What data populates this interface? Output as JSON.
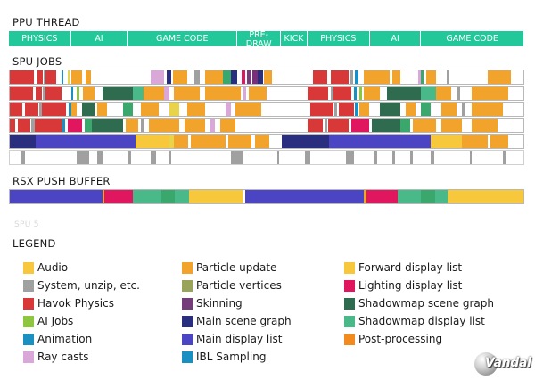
{
  "ppu": {
    "title": "PPU THREAD",
    "segments": [
      {
        "label": "PHYSICS",
        "fraction": 0.1204
      },
      {
        "label": "AI",
        "fraction": 0.1104
      },
      {
        "label": "GAME CODE",
        "fraction": 0.2124
      },
      {
        "label": "PRE-\nDRAW",
        "fraction": 0.085
      },
      {
        "label": "KICK",
        "fraction": 0.051
      },
      {
        "label": "PHYSICS",
        "fraction": 0.1214
      },
      {
        "label": "AI",
        "fraction": 0.0994
      },
      {
        "label": "GAME CODE",
        "fraction": 0.2
      }
    ]
  },
  "spu": {
    "title": "SPU JOBS",
    "row_label": "SPU 5",
    "rows": [
      [
        [
          "#d93838",
          0,
          0.047
        ],
        [
          "#ffffff",
          0.047,
          0.054
        ],
        [
          "#d93838",
          0.054,
          0.064
        ],
        [
          "#a0a0a0",
          0.066,
          0.07
        ],
        [
          "#d93838",
          0.07,
          0.09
        ],
        [
          "#1a8fc2",
          0.1,
          0.105
        ],
        [
          "#e9d34a",
          0.112,
          0.116
        ],
        [
          "#f2a32c",
          0.12,
          0.14
        ],
        [
          "#f2a32c",
          0.148,
          0.158
        ],
        [
          "#d9a8d8",
          0.275,
          0.3
        ],
        [
          "#2a2e7e",
          0.305,
          0.315
        ],
        [
          "#f2a32c",
          0.318,
          0.345
        ],
        [
          "#a0a0a0",
          0.36,
          0.37
        ],
        [
          "#f2a32c",
          0.38,
          0.415
        ],
        [
          "#3aa86c",
          0.415,
          0.43
        ],
        [
          "#2a2e7e",
          0.43,
          0.443
        ],
        [
          "#e0175f",
          0.452,
          0.458
        ],
        [
          "#743c78",
          0.462,
          0.47
        ],
        [
          "#7a2e7a",
          0.472,
          0.482
        ],
        [
          "#2a2e7e",
          0.482,
          0.493
        ],
        [
          "#f2a32c",
          0.495,
          0.51
        ],
        [
          "#d93838",
          0.59,
          0.618
        ],
        [
          "#ffffff",
          0.618,
          0.625
        ],
        [
          "#d93838",
          0.625,
          0.66
        ],
        [
          "#a0a0a0",
          0.662,
          0.668
        ],
        [
          "#1a8fc2",
          0.672,
          0.678
        ],
        [
          "#f2a32c",
          0.69,
          0.74
        ],
        [
          "#f2a32c",
          0.745,
          0.76
        ],
        [
          "#d9a8d8",
          0.795,
          0.8
        ],
        [
          "#3aa86c",
          0.8,
          0.805
        ],
        [
          "#f2a32c",
          0.81,
          0.83
        ],
        [
          "#a0a0a0",
          0.85,
          0.855
        ],
        [
          "#f2a32c",
          0.93,
          0.975
        ]
      ],
      [
        [
          "#d93838",
          0,
          0.045
        ],
        [
          "#ffffff",
          0.045,
          0.05
        ],
        [
          "#d93838",
          0.05,
          0.062
        ],
        [
          "#a0a0a0",
          0.064,
          0.07
        ],
        [
          "#d93838",
          0.07,
          0.1
        ],
        [
          "#1a8fc2",
          0.12,
          0.124
        ],
        [
          "#8dc63f",
          0.13,
          0.136
        ],
        [
          "#f2a32c",
          0.142,
          0.165
        ],
        [
          "#2e6b4f",
          0.18,
          0.24
        ],
        [
          "#49b98a",
          0.24,
          0.26
        ],
        [
          "#f2a32c",
          0.26,
          0.3
        ],
        [
          "#d9a8d8",
          0.3,
          0.31
        ],
        [
          "#f2a32c",
          0.32,
          0.37
        ],
        [
          "#f2a32c",
          0.38,
          0.45
        ],
        [
          "#d9a8d8",
          0.455,
          0.46
        ],
        [
          "#f2a32c",
          0.465,
          0.5
        ],
        [
          "#d93838",
          0.58,
          0.62
        ],
        [
          "#a0a0a0",
          0.625,
          0.63
        ],
        [
          "#d93838",
          0.63,
          0.665
        ],
        [
          "#1a8fc2",
          0.67,
          0.675
        ],
        [
          "#8dc63f",
          0.68,
          0.686
        ],
        [
          "#f2a32c",
          0.69,
          0.72
        ],
        [
          "#2e6b4f",
          0.735,
          0.8
        ],
        [
          "#49b98a",
          0.8,
          0.83
        ],
        [
          "#f2a32c",
          0.83,
          0.86
        ],
        [
          "#a0a0a0",
          0.87,
          0.876
        ],
        [
          "#f2a32c",
          0.9,
          0.97
        ]
      ],
      [
        [
          "#d93838",
          0,
          0.025
        ],
        [
          "#ffffff",
          0.025,
          0.03
        ],
        [
          "#d93838",
          0.03,
          0.055
        ],
        [
          "#a0a0a0",
          0.057,
          0.062
        ],
        [
          "#d93838",
          0.062,
          0.11
        ],
        [
          "#1a8fc2",
          0.115,
          0.12
        ],
        [
          "#f2a32c",
          0.12,
          0.13
        ],
        [
          "#2e6b4f",
          0.14,
          0.165
        ],
        [
          "#f2a32c",
          0.17,
          0.19
        ],
        [
          "#3aa86c",
          0.22,
          0.24
        ],
        [
          "#f2a32c",
          0.255,
          0.29
        ],
        [
          "#e9d34a",
          0.31,
          0.33
        ],
        [
          "#f2a32c",
          0.345,
          0.38
        ],
        [
          "#d9a8d8",
          0.42,
          0.43
        ],
        [
          "#f2a32c",
          0.44,
          0.49
        ],
        [
          "#d93838",
          0.585,
          0.63
        ],
        [
          "#a0a0a0",
          0.632,
          0.638
        ],
        [
          "#d93838",
          0.64,
          0.67
        ],
        [
          "#1a8fc2",
          0.672,
          0.678
        ],
        [
          "#f2a32c",
          0.68,
          0.7
        ],
        [
          "#2e6b4f",
          0.72,
          0.76
        ],
        [
          "#f2a32c",
          0.77,
          0.79
        ],
        [
          "#3aa86c",
          0.8,
          0.82
        ],
        [
          "#f2a32c",
          0.84,
          0.87
        ],
        [
          "#a0a0a0",
          0.88,
          0.885
        ],
        [
          "#f2a32c",
          0.9,
          0.96
        ]
      ],
      [
        [
          "#d93838",
          0,
          0.01
        ],
        [
          "#ffffff",
          0.01,
          0.015
        ],
        [
          "#d93838",
          0.015,
          0.04
        ],
        [
          "#a0a0a0",
          0.042,
          0.048
        ],
        [
          "#d93838",
          0.048,
          0.1
        ],
        [
          "#1a8fc2",
          0.102,
          0.108
        ],
        [
          "#e0175f",
          0.112,
          0.14
        ],
        [
          "#3aa86c",
          0.145,
          0.16
        ],
        [
          "#2e6b4f",
          0.16,
          0.22
        ],
        [
          "#f2a32c",
          0.225,
          0.25
        ],
        [
          "#a0a0a0",
          0.255,
          0.26
        ],
        [
          "#f2a32c",
          0.27,
          0.33
        ],
        [
          "#f2a32c",
          0.34,
          0.38
        ],
        [
          "#d9a8d8",
          0.39,
          0.4
        ],
        [
          "#f2a32c",
          0.41,
          0.44
        ],
        [
          "#d93838",
          0.58,
          0.61
        ],
        [
          "#a0a0a0",
          0.612,
          0.618
        ],
        [
          "#d93838",
          0.62,
          0.66
        ],
        [
          "#e0175f",
          0.665,
          0.7
        ],
        [
          "#2e6b4f",
          0.705,
          0.76
        ],
        [
          "#3aa86c",
          0.76,
          0.78
        ],
        [
          "#f2a32c",
          0.785,
          0.83
        ],
        [
          "#f2a32c",
          0.84,
          0.88
        ],
        [
          "#f2a32c",
          0.9,
          0.95
        ]
      ],
      [
        [
          "#2a2e7e",
          0,
          0.05
        ],
        [
          "#4b45c4",
          0.05,
          0.245
        ],
        [
          "#f7c83c",
          0.245,
          0.31
        ],
        [
          "#e9d34a",
          0.31,
          0.32
        ],
        [
          "#f2a32c",
          0.32,
          0.348
        ],
        [
          "#f2a32c",
          0.352,
          0.42
        ],
        [
          "#f2a32c",
          0.425,
          0.47
        ],
        [
          "#f2a32c",
          0.478,
          0.505
        ],
        [
          "#2a2e7e",
          0.53,
          0.622
        ],
        [
          "#4b45c4",
          0.622,
          0.82
        ],
        [
          "#f7c83c",
          0.82,
          0.88
        ],
        [
          "#f2a32c",
          0.88,
          0.93
        ],
        [
          "#f2a32c",
          0.935,
          0.97
        ]
      ],
      [
        [
          "#a0a0a0",
          0.02,
          0.03
        ],
        [
          "#a0a0a0",
          0.13,
          0.155
        ],
        [
          "#a0a0a0",
          0.17,
          0.18
        ],
        [
          "#a0a0a0",
          0.23,
          0.236
        ],
        [
          "#a0a0a0",
          0.275,
          0.285
        ],
        [
          "#a0a0a0",
          0.31,
          0.315
        ],
        [
          "#a0a0a0",
          0.43,
          0.455
        ],
        [
          "#a0a0a0",
          0.52,
          0.525
        ],
        [
          "#a0a0a0",
          0.575,
          0.585
        ],
        [
          "#a0a0a0",
          0.655,
          0.67
        ],
        [
          "#a0a0a0",
          0.71,
          0.715
        ],
        [
          "#a0a0a0",
          0.745,
          0.75
        ],
        [
          "#a0a0a0",
          0.78,
          0.785
        ],
        [
          "#a0a0a0",
          0.82,
          0.826
        ],
        [
          "#a0a0a0",
          0.895,
          0.9
        ],
        [
          "#a0a0a0",
          0.96,
          0.965
        ]
      ]
    ]
  },
  "rsx": {
    "title": "RSX PUSH BUFFER",
    "segments": [
      [
        "#4b45c4",
        0.18
      ],
      [
        "#f2a32c",
        0.004
      ],
      [
        "#e0175f",
        0.055
      ],
      [
        "#49b98a",
        0.057
      ],
      [
        "#3aa86c",
        0.025
      ],
      [
        "#49b98a",
        0.028
      ],
      [
        "#f7c83c",
        0.105
      ],
      [
        "#ffffff",
        0.004
      ],
      [
        "#4b45c4",
        0.232
      ],
      [
        "#f2a32c",
        0.005
      ],
      [
        "#e0175f",
        0.06
      ],
      [
        "#49b98a",
        0.045
      ],
      [
        "#3aa86c",
        0.028
      ],
      [
        "#49b98a",
        0.025
      ],
      [
        "#f7c83c",
        0.147
      ]
    ]
  },
  "legend": {
    "title": "LEGEND",
    "col1": [
      {
        "label": "Audio",
        "color": "#f7c83c"
      },
      {
        "label": "System, unzip, etc.",
        "color": "#a0a0a0"
      },
      {
        "label": "Havok Physics",
        "color": "#d93838"
      },
      {
        "label": "AI Jobs",
        "color": "#8dc63f"
      },
      {
        "label": "Animation",
        "color": "#1a8fc2"
      },
      {
        "label": "Ray casts",
        "color": "#d9a8d8"
      }
    ],
    "col2": [
      {
        "label": "Particle update",
        "color": "#f2a32c"
      },
      {
        "label": "Particle vertices",
        "color": "#9aa35a"
      },
      {
        "label": "Skinning",
        "color": "#743c78"
      },
      {
        "label": "Main scene graph",
        "color": "#2a2e7e"
      },
      {
        "label": "Main display list",
        "color": "#4b45c4"
      },
      {
        "label": "IBL Sampling",
        "color": "#1a8fc2"
      }
    ],
    "col3": [
      {
        "label": "Forward display list",
        "color": "#f7c83c"
      },
      {
        "label": "Lighting display list",
        "color": "#e0175f"
      },
      {
        "label": "Shadowmap scene graph",
        "color": "#2e6b4f"
      },
      {
        "label": "Shadowmap display list",
        "color": "#49b98a"
      },
      {
        "label": "Post-processing",
        "color": "#f28a1e"
      }
    ]
  },
  "watermark": {
    "text": "Vandal"
  }
}
